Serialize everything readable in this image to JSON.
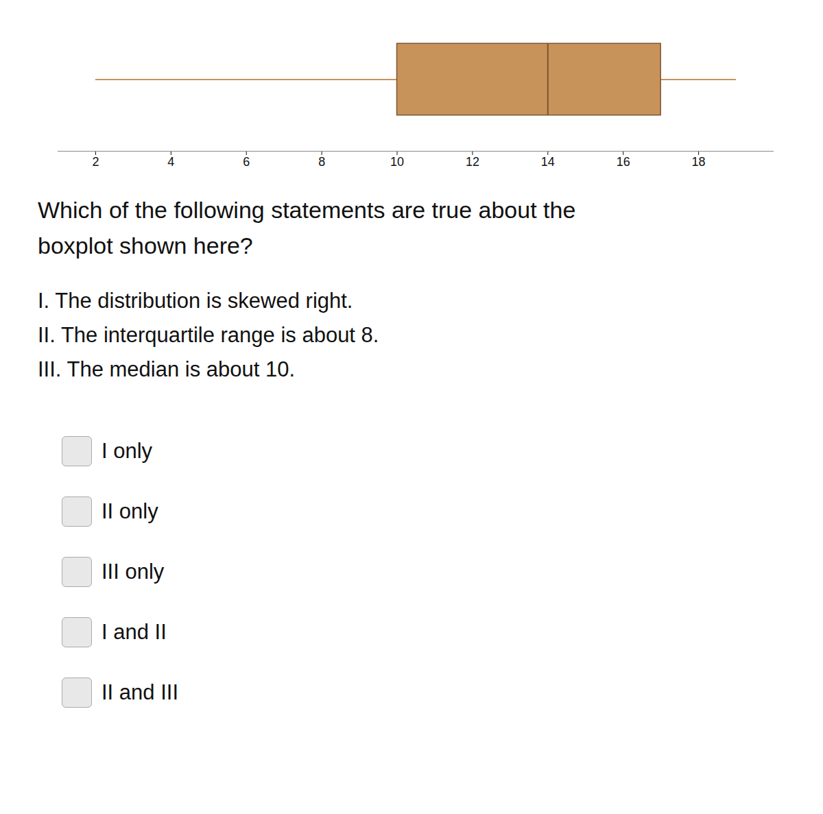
{
  "chart_data": {
    "type": "boxplot",
    "min": 2,
    "q1": 10,
    "median": 14,
    "q3": 17,
    "max": 19,
    "color": "#C8935A",
    "xlim": [
      1,
      20
    ],
    "xticks": [
      2,
      4,
      6,
      8,
      10,
      12,
      14,
      16,
      18
    ],
    "tick_labels": "x",
    "grid": false,
    "question": [
      "Which of the following statements are true about the",
      "boxplot shown here?"
    ],
    "statements": [
      "I.  The distribution is skewed right.",
      "II.  The interquartile range is about 8.",
      "III.  The median is about 10."
    ],
    "choices": [
      "I only",
      "II only",
      "III only",
      "I and II",
      "II and III"
    ]
  }
}
